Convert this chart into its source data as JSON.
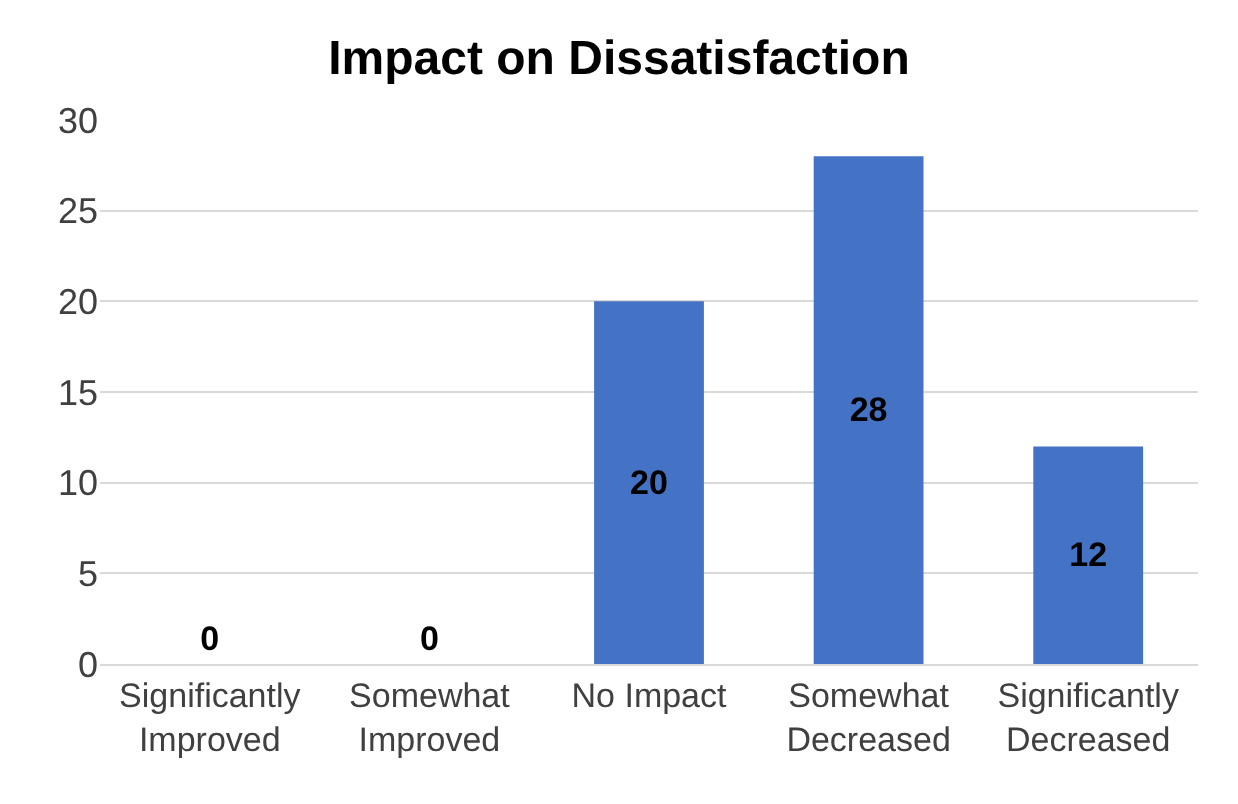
{
  "chart_data": {
    "type": "bar",
    "title": "Impact on Dissatisfaction",
    "categories": [
      "Significantly\nImproved",
      "Somewhat\nImproved",
      "No Impact",
      "Somewhat\nDecreased",
      "Significantly\nDecreased"
    ],
    "values": [
      0,
      0,
      20,
      28,
      12
    ],
    "color": "#4472c4",
    "ylim": [
      0,
      30
    ],
    "yticks": [
      0,
      5,
      10,
      15,
      20,
      25,
      30
    ],
    "grid": "y",
    "data_labels": true
  }
}
